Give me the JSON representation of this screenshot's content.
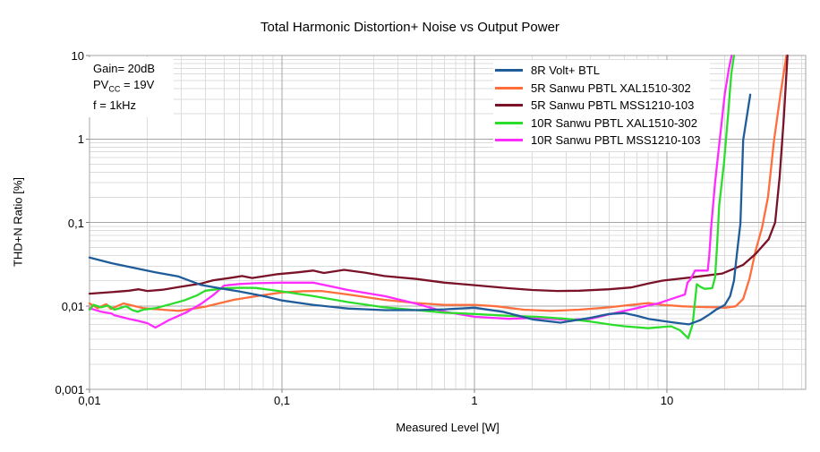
{
  "chart_data": {
    "type": "line",
    "title": "Total Harmonic Distortion+ Noise vs Output Power",
    "xlabel": "Measured Level [W]",
    "ylabel": "THD+N Ratio [%]",
    "x_scale": "log",
    "y_scale": "log",
    "xlim": [
      0.01,
      52.6
    ],
    "ylim": [
      0.001,
      10
    ],
    "grid": {
      "minor": true,
      "minor_color": "#dcdcdc",
      "major_color": "#a6a6a6",
      "frame_color": "#a6a6a6"
    },
    "legend_position": "top-right-inside",
    "x_ticks": [
      {
        "value": 0.01,
        "label": "0,01"
      },
      {
        "value": 0.1,
        "label": "0,1"
      },
      {
        "value": 1,
        "label": "1"
      },
      {
        "value": 10,
        "label": "10"
      }
    ],
    "y_ticks": [
      {
        "value": 10,
        "label": "10"
      },
      {
        "value": 1,
        "label": "1"
      },
      {
        "value": 0.1,
        "label": "0,1"
      },
      {
        "value": 0.01,
        "label": "0,01"
      },
      {
        "value": 0.001,
        "label": "0,001"
      }
    ],
    "annotation": {
      "line1": "Gain= 20dB",
      "line2_main": "PV",
      "line2_sub": "CC",
      "line2_rest": " = 19V",
      "line3": "f = 1kHz"
    },
    "series": [
      {
        "name": "8R Volt+ BTL",
        "color": "#1f5c99",
        "points": [
          [
            0.01,
            0.038
          ],
          [
            0.013,
            0.0325
          ],
          [
            0.017,
            0.0285
          ],
          [
            0.022,
            0.0253
          ],
          [
            0.029,
            0.0225
          ],
          [
            0.038,
            0.0178
          ],
          [
            0.048,
            0.0162
          ],
          [
            0.06,
            0.0149
          ],
          [
            0.08,
            0.0131
          ],
          [
            0.1,
            0.0116
          ],
          [
            0.145,
            0.0103
          ],
          [
            0.22,
            0.0093
          ],
          [
            0.34,
            0.0089
          ],
          [
            0.5,
            0.0089
          ],
          [
            0.7,
            0.0091
          ],
          [
            1,
            0.0095
          ],
          [
            1.4,
            0.0085
          ],
          [
            2,
            0.0069
          ],
          [
            2.8,
            0.0063
          ],
          [
            4,
            0.0072
          ],
          [
            5,
            0.008
          ],
          [
            6,
            0.0082
          ],
          [
            7,
            0.0076
          ],
          [
            8,
            0.007
          ],
          [
            9.5,
            0.0066
          ],
          [
            11,
            0.0063
          ],
          [
            13,
            0.006
          ],
          [
            15,
            0.0068
          ],
          [
            16.5,
            0.0078
          ],
          [
            18,
            0.009
          ],
          [
            20,
            0.0103
          ],
          [
            21.3,
            0.0131
          ],
          [
            22.3,
            0.02
          ],
          [
            23.2,
            0.046
          ],
          [
            24.1,
            0.097
          ],
          [
            24.9,
            0.97
          ],
          [
            26.2,
            2.05
          ],
          [
            27.1,
            3.4
          ]
        ]
      },
      {
        "name": "5R Sanwu PBTL XAL1510-302",
        "color": "#ff6e3c",
        "points": [
          [
            0.01,
            0.0107
          ],
          [
            0.011,
            0.0094
          ],
          [
            0.0122,
            0.0105
          ],
          [
            0.0129,
            0.0092
          ],
          [
            0.015,
            0.0107
          ],
          [
            0.019,
            0.0094
          ],
          [
            0.024,
            0.009
          ],
          [
            0.029,
            0.0087
          ],
          [
            0.04,
            0.0098
          ],
          [
            0.056,
            0.0118
          ],
          [
            0.077,
            0.0133
          ],
          [
            0.1,
            0.0145
          ],
          [
            0.13,
            0.015
          ],
          [
            0.16,
            0.0151
          ],
          [
            0.22,
            0.0137
          ],
          [
            0.34,
            0.0118
          ],
          [
            0.5,
            0.0108
          ],
          [
            0.7,
            0.0103
          ],
          [
            1,
            0.0103
          ],
          [
            1.3,
            0.0099
          ],
          [
            1.8,
            0.009
          ],
          [
            2.5,
            0.0087
          ],
          [
            3.5,
            0.009
          ],
          [
            5,
            0.0096
          ],
          [
            6.5,
            0.0103
          ],
          [
            8,
            0.0108
          ],
          [
            9.5,
            0.0103
          ],
          [
            12,
            0.0099
          ],
          [
            15,
            0.0097
          ],
          [
            18,
            0.0096
          ],
          [
            20,
            0.0095
          ],
          [
            22.8,
            0.0099
          ],
          [
            24.9,
            0.0121
          ],
          [
            26.9,
            0.0215
          ],
          [
            28.9,
            0.046
          ],
          [
            31.2,
            0.086
          ],
          [
            33.5,
            0.2
          ],
          [
            36,
            0.95
          ],
          [
            39,
            3.6
          ],
          [
            41.8,
            10
          ]
        ]
      },
      {
        "name": "5R Sanwu PBTL MSS1210-103",
        "color": "#7a1228",
        "points": [
          [
            0.01,
            0.014
          ],
          [
            0.013,
            0.0146
          ],
          [
            0.016,
            0.0152
          ],
          [
            0.018,
            0.0158
          ],
          [
            0.02,
            0.0151
          ],
          [
            0.024,
            0.0156
          ],
          [
            0.029,
            0.0168
          ],
          [
            0.038,
            0.0185
          ],
          [
            0.044,
            0.0203
          ],
          [
            0.055,
            0.0218
          ],
          [
            0.062,
            0.0228
          ],
          [
            0.07,
            0.0216
          ],
          [
            0.082,
            0.0228
          ],
          [
            0.095,
            0.024
          ],
          [
            0.12,
            0.0252
          ],
          [
            0.145,
            0.0265
          ],
          [
            0.165,
            0.0248
          ],
          [
            0.21,
            0.027
          ],
          [
            0.27,
            0.025
          ],
          [
            0.34,
            0.0228
          ],
          [
            0.5,
            0.021
          ],
          [
            0.7,
            0.019
          ],
          [
            1,
            0.0177
          ],
          [
            1.5,
            0.0163
          ],
          [
            2,
            0.0155
          ],
          [
            2.7,
            0.0151
          ],
          [
            3.5,
            0.0152
          ],
          [
            5,
            0.0158
          ],
          [
            6.5,
            0.0166
          ],
          [
            8,
            0.0185
          ],
          [
            9.5,
            0.0201
          ],
          [
            13.5,
            0.022
          ],
          [
            19.4,
            0.0244
          ],
          [
            24.9,
            0.031
          ],
          [
            28.9,
            0.042
          ],
          [
            33.8,
            0.063
          ],
          [
            36.5,
            0.1
          ],
          [
            38.5,
            0.35
          ],
          [
            40.5,
            1.8
          ],
          [
            42.3,
            10
          ]
        ]
      },
      {
        "name": "10R Sanwu PBTL XAL1510-302",
        "color": "#2cdd2c",
        "points": [
          [
            0.01,
            0.009
          ],
          [
            0.0105,
            0.0103
          ],
          [
            0.0115,
            0.0096
          ],
          [
            0.0125,
            0.0101
          ],
          [
            0.0135,
            0.009
          ],
          [
            0.0155,
            0.0099
          ],
          [
            0.0167,
            0.0089
          ],
          [
            0.0178,
            0.0085
          ],
          [
            0.019,
            0.009
          ],
          [
            0.022,
            0.0094
          ],
          [
            0.026,
            0.0104
          ],
          [
            0.031,
            0.0116
          ],
          [
            0.036,
            0.0133
          ],
          [
            0.04,
            0.0152
          ],
          [
            0.05,
            0.0162
          ],
          [
            0.06,
            0.0165
          ],
          [
            0.073,
            0.0164
          ],
          [
            0.1,
            0.0149
          ],
          [
            0.145,
            0.0131
          ],
          [
            0.22,
            0.0111
          ],
          [
            0.34,
            0.0096
          ],
          [
            0.5,
            0.0089
          ],
          [
            0.7,
            0.0083
          ],
          [
            1,
            0.008
          ],
          [
            1.5,
            0.0076
          ],
          [
            2.1,
            0.0074
          ],
          [
            3,
            0.007
          ],
          [
            4,
            0.0065
          ],
          [
            5,
            0.006
          ],
          [
            6,
            0.0057
          ],
          [
            8,
            0.0054
          ],
          [
            10.5,
            0.0057
          ],
          [
            11.7,
            0.0051
          ],
          [
            12.9,
            0.0041
          ],
          [
            13.6,
            0.006
          ],
          [
            14.3,
            0.0182
          ],
          [
            15,
            0.0168
          ],
          [
            15.7,
            0.016
          ],
          [
            17.2,
            0.0163
          ],
          [
            17.8,
            0.022
          ],
          [
            18.2,
            0.05
          ],
          [
            18.7,
            0.16
          ],
          [
            19.8,
            0.52
          ],
          [
            20.8,
            2
          ],
          [
            21.6,
            6
          ],
          [
            22.3,
            10
          ]
        ]
      },
      {
        "name": "10R Sanwu PBTL MSS1210-103",
        "color": "#ff2cff",
        "points": [
          [
            0.01,
            0.0094
          ],
          [
            0.0115,
            0.0085
          ],
          [
            0.013,
            0.0081
          ],
          [
            0.0135,
            0.0077
          ],
          [
            0.016,
            0.007
          ],
          [
            0.018,
            0.0066
          ],
          [
            0.02,
            0.0062
          ],
          [
            0.022,
            0.0055
          ],
          [
            0.026,
            0.0068
          ],
          [
            0.032,
            0.0084
          ],
          [
            0.038,
            0.0106
          ],
          [
            0.044,
            0.0135
          ],
          [
            0.05,
            0.0175
          ],
          [
            0.06,
            0.0183
          ],
          [
            0.073,
            0.0187
          ],
          [
            0.1,
            0.019
          ],
          [
            0.145,
            0.019
          ],
          [
            0.22,
            0.0155
          ],
          [
            0.34,
            0.0131
          ],
          [
            0.5,
            0.0106
          ],
          [
            0.7,
            0.0085
          ],
          [
            1,
            0.0074
          ],
          [
            1.5,
            0.007
          ],
          [
            2.1,
            0.0072
          ],
          [
            3,
            0.0068
          ],
          [
            4,
            0.007
          ],
          [
            5,
            0.0079
          ],
          [
            6,
            0.0087
          ],
          [
            7,
            0.0094
          ],
          [
            8,
            0.0101
          ],
          [
            9,
            0.0107
          ],
          [
            10,
            0.0116
          ],
          [
            11.7,
            0.0131
          ],
          [
            12.4,
            0.0137
          ],
          [
            12.8,
            0.019
          ],
          [
            13.3,
            0.021
          ],
          [
            14,
            0.0265
          ],
          [
            16.3,
            0.0265
          ],
          [
            16.6,
            0.04
          ],
          [
            17,
            0.09
          ],
          [
            17.8,
            0.3
          ],
          [
            19,
            1.2
          ],
          [
            20,
            3.5
          ],
          [
            21,
            7
          ],
          [
            21.7,
            10
          ]
        ]
      }
    ]
  }
}
